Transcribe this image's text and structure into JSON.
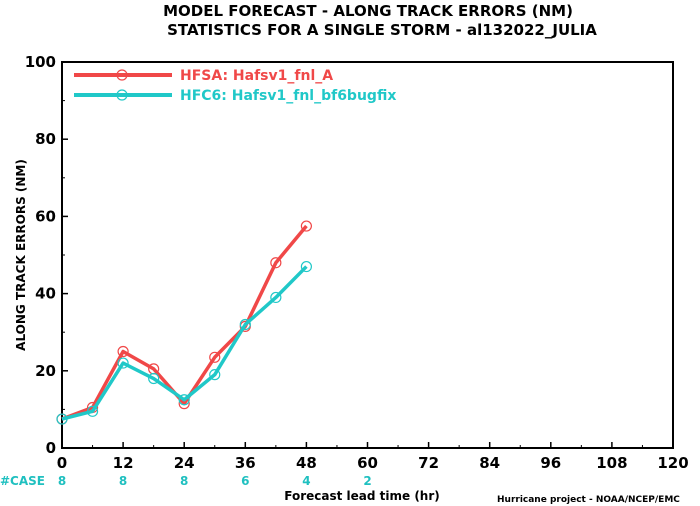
{
  "chart_data": {
    "type": "line",
    "title": "MODEL FORECAST - ALONG TRACK ERRORS (NM)",
    "subtitle": "STATISTICS FOR A SINGLE STORM - al132022_JULIA",
    "xlabel": "Forecast lead time (hr)",
    "ylabel": "ALONG TRACK ERRORS (NM)",
    "xlim": [
      0,
      120
    ],
    "ylim": [
      0,
      100
    ],
    "xticks": [
      0,
      12,
      24,
      36,
      48,
      60,
      72,
      84,
      96,
      108,
      120
    ],
    "yticks": [
      0,
      20,
      40,
      60,
      80,
      100
    ],
    "grid": false,
    "legend_position": "top-left",
    "series": [
      {
        "name": "HFSA: Hafsv1_fnl_A",
        "color": "#f04848",
        "x": [
          0,
          6,
          12,
          18,
          24,
          30,
          36,
          42,
          48
        ],
        "y": [
          7.5,
          10.5,
          25,
          20.5,
          11.5,
          23.5,
          31.5,
          48,
          57.5
        ]
      },
      {
        "name": "HFC6: Hafsv1_fnl_bf6bugfix",
        "color": "#20c8c8",
        "x": [
          0,
          6,
          12,
          18,
          24,
          30,
          36,
          42,
          48
        ],
        "y": [
          7.5,
          9.5,
          22,
          18,
          12.5,
          19,
          32,
          39,
          47
        ]
      }
    ],
    "case_label": "#CASE",
    "cases": [
      {
        "x": 0,
        "n": "8"
      },
      {
        "x": 12,
        "n": "8"
      },
      {
        "x": 24,
        "n": "8"
      },
      {
        "x": 36,
        "n": "6"
      },
      {
        "x": 48,
        "n": "4"
      },
      {
        "x": 60,
        "n": "2"
      }
    ],
    "credit": "Hurricane project - NOAA/NCEP/EMC"
  }
}
